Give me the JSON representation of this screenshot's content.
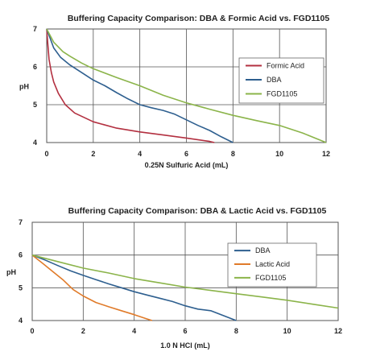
{
  "chart_data": [
    {
      "type": "line",
      "title": "Buffering Capacity Comparison: DBA & Formic Acid vs. FGD1105",
      "xlabel": "0.25N Sulfuric Acid (mL)",
      "ylabel": "pH",
      "xlim": [
        0,
        12
      ],
      "ylim": [
        4,
        7
      ],
      "xticks": [
        "0",
        "2",
        "4",
        "6",
        "8",
        "10",
        "12"
      ],
      "yticks": [
        "4",
        "5",
        "6",
        "7"
      ],
      "grid": true,
      "legend_position": "right",
      "series": [
        {
          "name": "Formic Acid",
          "color": "#b33040",
          "points": [
            [
              0,
              7.0
            ],
            [
              0.05,
              6.6
            ],
            [
              0.1,
              6.2
            ],
            [
              0.2,
              5.85
            ],
            [
              0.3,
              5.6
            ],
            [
              0.5,
              5.3
            ],
            [
              0.8,
              5.0
            ],
            [
              1.2,
              4.78
            ],
            [
              2,
              4.55
            ],
            [
              3,
              4.38
            ],
            [
              4,
              4.28
            ],
            [
              5,
              4.2
            ],
            [
              6,
              4.12
            ],
            [
              7,
              4.03
            ],
            [
              7.2,
              4.0
            ]
          ]
        },
        {
          "name": "DBA",
          "color": "#2e5f8f",
          "points": [
            [
              0,
              7.0
            ],
            [
              0.3,
              6.5
            ],
            [
              0.6,
              6.25
            ],
            [
              1,
              6.05
            ],
            [
              1.5,
              5.85
            ],
            [
              2,
              5.65
            ],
            [
              2.5,
              5.5
            ],
            [
              3,
              5.32
            ],
            [
              3.5,
              5.15
            ],
            [
              4,
              5.0
            ],
            [
              4.5,
              4.92
            ],
            [
              5,
              4.85
            ],
            [
              5.5,
              4.75
            ],
            [
              6,
              4.6
            ],
            [
              6.5,
              4.45
            ],
            [
              7,
              4.32
            ],
            [
              7.5,
              4.15
            ],
            [
              8,
              4.0
            ]
          ]
        },
        {
          "name": "FGD1105",
          "color": "#8bb44a",
          "points": [
            [
              0,
              7.0
            ],
            [
              0.3,
              6.65
            ],
            [
              0.7,
              6.4
            ],
            [
              1,
              6.28
            ],
            [
              1.5,
              6.1
            ],
            [
              2,
              5.95
            ],
            [
              3,
              5.72
            ],
            [
              4,
              5.5
            ],
            [
              5,
              5.25
            ],
            [
              6,
              5.05
            ],
            [
              7,
              4.88
            ],
            [
              8,
              4.72
            ],
            [
              9,
              4.58
            ],
            [
              10,
              4.45
            ],
            [
              11,
              4.25
            ],
            [
              12,
              4.0
            ]
          ]
        }
      ]
    },
    {
      "type": "line",
      "title": "Buffering Capacity Comparison: DBA & Lactic Acid vs. FGD1105",
      "xlabel": "1.0 N HCl (mL)",
      "ylabel": "pH",
      "xlim": [
        0,
        12
      ],
      "ylim": [
        4,
        7
      ],
      "xticks": [
        "0",
        "2",
        "4",
        "6",
        "8",
        "10",
        "12"
      ],
      "yticks": [
        "4",
        "5",
        "6",
        "7"
      ],
      "grid": true,
      "legend_position": "right",
      "series": [
        {
          "name": "DBA",
          "color": "#2e5f8f",
          "points": [
            [
              0,
              6.0
            ],
            [
              0.5,
              5.85
            ],
            [
              1,
              5.68
            ],
            [
              1.5,
              5.52
            ],
            [
              2,
              5.38
            ],
            [
              2.5,
              5.25
            ],
            [
              3,
              5.12
            ],
            [
              3.5,
              5.0
            ],
            [
              4,
              4.88
            ],
            [
              4.5,
              4.78
            ],
            [
              5,
              4.68
            ],
            [
              5.5,
              4.58
            ],
            [
              6,
              4.45
            ],
            [
              6.5,
              4.35
            ],
            [
              7,
              4.3
            ],
            [
              7.5,
              4.15
            ],
            [
              8,
              4.0
            ]
          ]
        },
        {
          "name": "Lactic Acid",
          "color": "#e07b2a",
          "points": [
            [
              0,
              6.0
            ],
            [
              0.4,
              5.75
            ],
            [
              0.8,
              5.5
            ],
            [
              1.2,
              5.25
            ],
            [
              1.6,
              4.95
            ],
            [
              2,
              4.75
            ],
            [
              2.5,
              4.55
            ],
            [
              3,
              4.42
            ],
            [
              3.5,
              4.3
            ],
            [
              4,
              4.18
            ],
            [
              4.5,
              4.05
            ],
            [
              4.7,
              4.0
            ]
          ]
        },
        {
          "name": "FGD1105",
          "color": "#8bb44a",
          "points": [
            [
              0,
              6.0
            ],
            [
              1,
              5.8
            ],
            [
              2,
              5.6
            ],
            [
              3,
              5.45
            ],
            [
              4,
              5.28
            ],
            [
              5,
              5.15
            ],
            [
              6,
              5.02
            ],
            [
              7,
              4.92
            ],
            [
              8,
              4.82
            ],
            [
              9,
              4.72
            ],
            [
              10,
              4.62
            ],
            [
              11,
              4.5
            ],
            [
              12,
              4.38
            ]
          ]
        }
      ]
    }
  ]
}
